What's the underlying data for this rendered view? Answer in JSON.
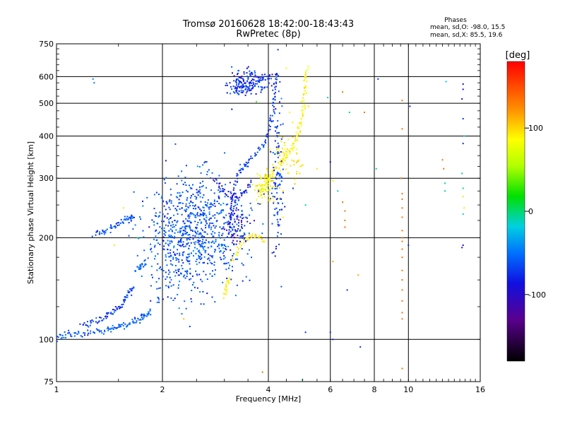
{
  "chart_data": {
    "type": "scatter",
    "title": "Tromsø 20160628 18:42:00-18:43:43",
    "subtitle": "RwPretec (8p)",
    "xlabel": "Frequency [MHz]",
    "ylabel": "Stationary phase Virtual Height [km]",
    "x_scale": "log",
    "y_scale": "log",
    "xlim": [
      1,
      16
    ],
    "ylim": [
      75,
      750
    ],
    "x_ticks": [
      1,
      2,
      4,
      6,
      8,
      10,
      16
    ],
    "x_tick_labels": [
      "1",
      "2",
      "4",
      "6",
      "8",
      "10",
      "16"
    ],
    "y_ticks": [
      75,
      100,
      200,
      300,
      400,
      500,
      600,
      750
    ],
    "y_tick_labels": [
      "75",
      "100",
      "200",
      "300",
      "400",
      "500",
      "600",
      "750"
    ],
    "grid": true,
    "info": {
      "heading": "Phases",
      "line1": "mean, sd,O: -98.0, 15.5",
      "line2": "mean, sd,X: 85.5, 19.6"
    },
    "colorbar": {
      "label": "[deg]",
      "min": -180,
      "max": 180,
      "ticks": [
        -100,
        0,
        100
      ],
      "tick_labels": [
        "-100",
        "0",
        "100"
      ]
    },
    "traces": [
      {
        "phase": -95,
        "points": [
          [
            1.0,
            101
          ],
          [
            1.05,
            103
          ],
          [
            1.12,
            104
          ],
          [
            1.2,
            104
          ],
          [
            1.3,
            105
          ],
          [
            1.38,
            106
          ],
          [
            1.45,
            108
          ],
          [
            1.52,
            110
          ],
          [
            1.6,
            112
          ],
          [
            1.68,
            114
          ],
          [
            1.74,
            116
          ],
          [
            1.8,
            118
          ],
          [
            1.86,
            122
          ]
        ]
      },
      {
        "phase": -105,
        "points": [
          [
            1.18,
            110
          ],
          [
            1.25,
            112
          ],
          [
            1.33,
            114
          ],
          [
            1.4,
            118
          ],
          [
            1.47,
            122
          ],
          [
            1.53,
            127
          ],
          [
            1.58,
            133
          ],
          [
            1.62,
            138
          ],
          [
            1.66,
            142
          ]
        ]
      },
      {
        "phase": -100,
        "points": [
          [
            1.28,
            206
          ],
          [
            1.35,
            208
          ],
          [
            1.42,
            212
          ],
          [
            1.5,
            220
          ],
          [
            1.57,
            226
          ],
          [
            1.63,
            230
          ],
          [
            1.67,
            233
          ]
        ]
      },
      {
        "phase": -90,
        "points": [
          [
            1.68,
            160
          ],
          [
            1.74,
            165
          ],
          [
            1.8,
            170
          ]
        ]
      },
      {
        "phase": -110,
        "points": [
          [
            3.1,
            205
          ],
          [
            3.12,
            225
          ],
          [
            3.14,
            250
          ],
          [
            3.2,
            280
          ],
          [
            3.3,
            310
          ],
          [
            3.45,
            330
          ],
          [
            3.65,
            350
          ],
          [
            3.85,
            375
          ],
          [
            4.0,
            410
          ],
          [
            4.1,
            450
          ],
          [
            4.15,
            520
          ],
          [
            4.2,
            580
          ],
          [
            4.25,
            620
          ]
        ]
      },
      {
        "phase": -120,
        "points": [
          [
            2.8,
            300
          ],
          [
            2.95,
            280
          ],
          [
            3.1,
            268
          ],
          [
            3.25,
            262
          ],
          [
            3.45,
            272
          ],
          [
            3.6,
            295
          ]
        ]
      },
      {
        "phase": -115,
        "points": [
          [
            3.2,
            540
          ],
          [
            3.4,
            550
          ],
          [
            3.6,
            560
          ],
          [
            3.8,
            590
          ],
          [
            4.1,
            600
          ]
        ]
      },
      {
        "phase": 95,
        "points": [
          [
            3.85,
            270
          ],
          [
            3.95,
            290
          ],
          [
            4.05,
            310
          ],
          [
            4.3,
            330
          ],
          [
            4.5,
            350
          ],
          [
            4.7,
            370
          ],
          [
            4.85,
            400
          ],
          [
            4.95,
            440
          ],
          [
            5.0,
            480
          ],
          [
            5.05,
            530
          ],
          [
            5.1,
            590
          ],
          [
            5.15,
            640
          ]
        ]
      },
      {
        "phase": 100,
        "points": [
          [
            3.15,
            170
          ],
          [
            3.3,
            190
          ],
          [
            3.5,
            200
          ],
          [
            3.7,
            205
          ],
          [
            3.95,
            195
          ]
        ]
      },
      {
        "phase": 90,
        "points": [
          [
            3.0,
            135
          ],
          [
            3.05,
            145
          ],
          [
            3.1,
            152
          ]
        ]
      }
    ],
    "clusters": [
      {
        "phase": -95,
        "center": [
          2.55,
          215
        ],
        "spread": [
          0.17,
          0.2
        ],
        "count": 620
      },
      {
        "phase": -100,
        "center": [
          2.3,
          190
        ],
        "spread": [
          0.12,
          0.22
        ],
        "count": 220
      },
      {
        "phase": -110,
        "center": [
          3.5,
          580
        ],
        "spread": [
          0.07,
          0.04
        ],
        "count": 150
      },
      {
        "phase": -125,
        "center": [
          3.25,
          215
        ],
        "spread": [
          0.04,
          0.08
        ],
        "count": 70
      },
      {
        "phase": -105,
        "center": [
          4.25,
          320
        ],
        "spread": [
          0.02,
          0.3
        ],
        "count": 120
      },
      {
        "phase": 90,
        "center": [
          3.9,
          285
        ],
        "spread": [
          0.03,
          0.06
        ],
        "count": 70
      },
      {
        "phase": 100,
        "center": [
          4.55,
          350
        ],
        "spread": [
          0.05,
          0.1
        ],
        "count": 60
      }
    ],
    "scatter_points": [
      {
        "x": 1.27,
        "y": 590,
        "phase": -80
      },
      {
        "x": 1.28,
        "y": 575,
        "phase": -80
      },
      {
        "x": 3.15,
        "y": 480,
        "phase": -120
      },
      {
        "x": 3.7,
        "y": 505,
        "phase": 20
      },
      {
        "x": 4.5,
        "y": 635,
        "phase": 95
      },
      {
        "x": 4.6,
        "y": 470,
        "phase": 95
      },
      {
        "x": 5.2,
        "y": 490,
        "phase": 110
      },
      {
        "x": 5.9,
        "y": 520,
        "phase": -30
      },
      {
        "x": 6.5,
        "y": 540,
        "phase": 150
      },
      {
        "x": 6.8,
        "y": 470,
        "phase": -30
      },
      {
        "x": 7.5,
        "y": 470,
        "phase": 150
      },
      {
        "x": 8.2,
        "y": 590,
        "phase": -110
      },
      {
        "x": 9.6,
        "y": 510,
        "phase": 150
      },
      {
        "x": 9.6,
        "y": 420,
        "phase": 150
      },
      {
        "x": 10.1,
        "y": 490,
        "phase": -110
      },
      {
        "x": 12.8,
        "y": 580,
        "phase": -40
      },
      {
        "x": 14.3,
        "y": 570,
        "phase": -120
      },
      {
        "x": 14.3,
        "y": 550,
        "phase": -120
      },
      {
        "x": 14.2,
        "y": 515,
        "phase": -120
      },
      {
        "x": 14.3,
        "y": 450,
        "phase": -110
      },
      {
        "x": 14.4,
        "y": 400,
        "phase": -40
      },
      {
        "x": 14.3,
        "y": 380,
        "phase": -110
      },
      {
        "x": 6.0,
        "y": 335,
        "phase": -120
      },
      {
        "x": 6.1,
        "y": 295,
        "phase": 100
      },
      {
        "x": 6.1,
        "y": 170,
        "phase": 130
      },
      {
        "x": 6.0,
        "y": 105,
        "phase": -110
      },
      {
        "x": 6.1,
        "y": 100,
        "phase": -110
      },
      {
        "x": 6.3,
        "y": 275,
        "phase": -30
      },
      {
        "x": 6.5,
        "y": 255,
        "phase": 150
      },
      {
        "x": 6.6,
        "y": 240,
        "phase": 150
      },
      {
        "x": 6.6,
        "y": 225,
        "phase": 150
      },
      {
        "x": 6.6,
        "y": 215,
        "phase": 150
      },
      {
        "x": 6.7,
        "y": 140,
        "phase": -110
      },
      {
        "x": 7.2,
        "y": 155,
        "phase": 130
      },
      {
        "x": 7.3,
        "y": 95,
        "phase": -110
      },
      {
        "x": 8.1,
        "y": 320,
        "phase": -30
      },
      {
        "x": 9.5,
        "y": 300,
        "phase": 150
      },
      {
        "x": 9.6,
        "y": 270,
        "phase": 150
      },
      {
        "x": 9.6,
        "y": 260,
        "phase": 150
      },
      {
        "x": 9.6,
        "y": 245,
        "phase": 150
      },
      {
        "x": 9.6,
        "y": 230,
        "phase": 150
      },
      {
        "x": 9.6,
        "y": 210,
        "phase": 150
      },
      {
        "x": 9.6,
        "y": 200,
        "phase": 150
      },
      {
        "x": 9.6,
        "y": 195,
        "phase": 150
      },
      {
        "x": 9.6,
        "y": 185,
        "phase": 150
      },
      {
        "x": 9.6,
        "y": 175,
        "phase": 150
      },
      {
        "x": 9.6,
        "y": 160,
        "phase": 150
      },
      {
        "x": 9.6,
        "y": 150,
        "phase": 150
      },
      {
        "x": 9.6,
        "y": 140,
        "phase": 150
      },
      {
        "x": 9.6,
        "y": 130,
        "phase": 150
      },
      {
        "x": 9.6,
        "y": 120,
        "phase": 150
      },
      {
        "x": 9.6,
        "y": 115,
        "phase": 150
      },
      {
        "x": 9.6,
        "y": 82,
        "phase": 150
      },
      {
        "x": 10.0,
        "y": 190,
        "phase": -110
      },
      {
        "x": 12.5,
        "y": 340,
        "phase": 150
      },
      {
        "x": 12.6,
        "y": 320,
        "phase": 150
      },
      {
        "x": 12.7,
        "y": 290,
        "phase": -30
      },
      {
        "x": 12.7,
        "y": 275,
        "phase": -30
      },
      {
        "x": 14.2,
        "y": 310,
        "phase": -30
      },
      {
        "x": 14.3,
        "y": 280,
        "phase": -30
      },
      {
        "x": 14.3,
        "y": 265,
        "phase": 100
      },
      {
        "x": 14.4,
        "y": 245,
        "phase": 100
      },
      {
        "x": 14.3,
        "y": 235,
        "phase": -30
      },
      {
        "x": 14.3,
        "y": 190,
        "phase": -120
      },
      {
        "x": 14.2,
        "y": 187,
        "phase": -120
      },
      {
        "x": 5.5,
        "y": 320,
        "phase": 100
      },
      {
        "x": 5.1,
        "y": 105,
        "phase": -110
      },
      {
        "x": 5.1,
        "y": 250,
        "phase": -30
      },
      {
        "x": 5.0,
        "y": 76,
        "phase": -30
      },
      {
        "x": 3.85,
        "y": 80,
        "phase": 150
      },
      {
        "x": 2.3,
        "y": 115,
        "phase": 120
      },
      {
        "x": 1.46,
        "y": 190,
        "phase": 100
      },
      {
        "x": 1.55,
        "y": 245,
        "phase": 100
      },
      {
        "x": 1.7,
        "y": 200,
        "phase": -30
      },
      {
        "x": 4.3,
        "y": 260,
        "phase": 100
      },
      {
        "x": 4.4,
        "y": 230,
        "phase": 100
      },
      {
        "x": 4.4,
        "y": 275,
        "phase": 100
      },
      {
        "x": 4.7,
        "y": 280,
        "phase": -110
      }
    ]
  }
}
